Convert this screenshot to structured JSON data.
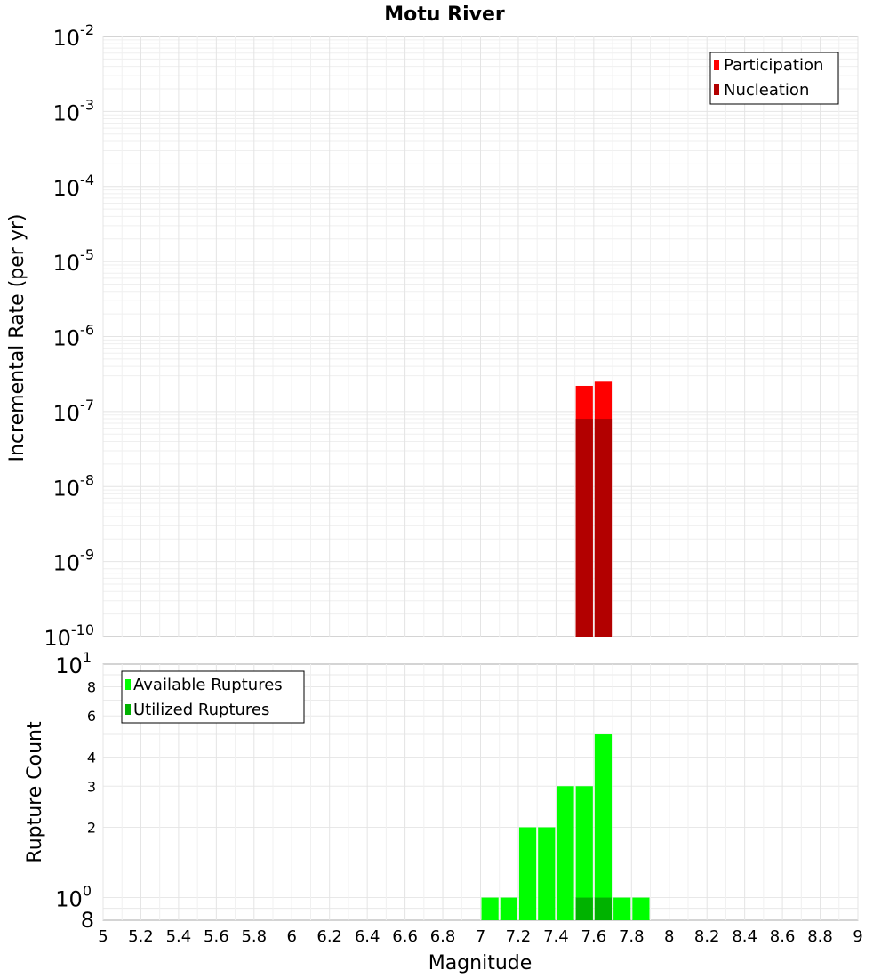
{
  "chart_data": [
    {
      "type": "bar",
      "title": "Motu River",
      "xlabel": "",
      "ylabel": "Incremental Rate (per yr)",
      "yscale": "log",
      "xlim": [
        5,
        9
      ],
      "ylim": [
        1e-10,
        0.01
      ],
      "grid": true,
      "y_ticks": [
        {
          "base": "10",
          "exp": "-2",
          "value": 0.01
        },
        {
          "base": "10",
          "exp": "-3",
          "value": 0.001
        },
        {
          "base": "10",
          "exp": "-4",
          "value": 0.0001
        },
        {
          "base": "10",
          "exp": "-5",
          "value": 1e-05
        },
        {
          "base": "10",
          "exp": "-6",
          "value": 1e-06
        },
        {
          "base": "10",
          "exp": "-7",
          "value": 1e-07
        },
        {
          "base": "10",
          "exp": "-8",
          "value": 1e-08
        },
        {
          "base": "10",
          "exp": "-9",
          "value": 1e-09
        },
        {
          "base": "10",
          "exp": "-10",
          "value": 1e-10
        }
      ],
      "legend": {
        "position": "top-right",
        "entries": [
          "Participation",
          "Nucleation"
        ]
      },
      "series": [
        {
          "name": "Participation",
          "color": "#ff0000",
          "points": [
            {
              "x": 7.55,
              "y": 2.2e-07
            },
            {
              "x": 7.65,
              "y": 2.5e-07
            }
          ]
        },
        {
          "name": "Nucleation",
          "color": "#b20000",
          "points": [
            {
              "x": 7.55,
              "y": 8e-08
            },
            {
              "x": 7.65,
              "y": 8e-08
            }
          ]
        }
      ]
    },
    {
      "type": "bar",
      "xlabel": "Magnitude",
      "ylabel": "Rupture Count",
      "yscale": "log",
      "xlim": [
        5,
        9
      ],
      "ylim": [
        0.8,
        10
      ],
      "grid": true,
      "x_ticks": [
        "5",
        "5.2",
        "5.4",
        "5.6",
        "5.8",
        "6",
        "6.2",
        "6.4",
        "6.6",
        "6.8",
        "7",
        "7.2",
        "7.4",
        "7.6",
        "7.8",
        "8",
        "8.2",
        "8.4",
        "8.6",
        "8.8",
        "9"
      ],
      "y_major_ticks": [
        {
          "base": "10",
          "exp": "1",
          "value": 10
        },
        {
          "base": "10",
          "exp": "0",
          "value": 1
        }
      ],
      "y_minor_ticks": [
        {
          "label": "8",
          "value": 8
        },
        {
          "label": "6",
          "value": 6
        },
        {
          "label": "4",
          "value": 4
        },
        {
          "label": "3",
          "value": 3
        },
        {
          "label": "2",
          "value": 2
        }
      ],
      "y_bottom_tick": {
        "label": "8",
        "value": 0.8
      },
      "legend": {
        "position": "top-left",
        "entries": [
          "Available Ruptures",
          "Utilized Ruptures"
        ]
      },
      "series": [
        {
          "name": "Available Ruptures",
          "color": "#00ff00",
          "points": [
            {
              "x": 7.05,
              "y": 1
            },
            {
              "x": 7.15,
              "y": 1
            },
            {
              "x": 7.25,
              "y": 2
            },
            {
              "x": 7.35,
              "y": 2
            },
            {
              "x": 7.45,
              "y": 3
            },
            {
              "x": 7.55,
              "y": 3
            },
            {
              "x": 7.65,
              "y": 5
            },
            {
              "x": 7.75,
              "y": 1
            },
            {
              "x": 7.85,
              "y": 1
            }
          ]
        },
        {
          "name": "Utilized Ruptures",
          "color": "#00b200",
          "points": [
            {
              "x": 7.55,
              "y": 1
            },
            {
              "x": 7.65,
              "y": 1
            }
          ]
        }
      ]
    }
  ]
}
